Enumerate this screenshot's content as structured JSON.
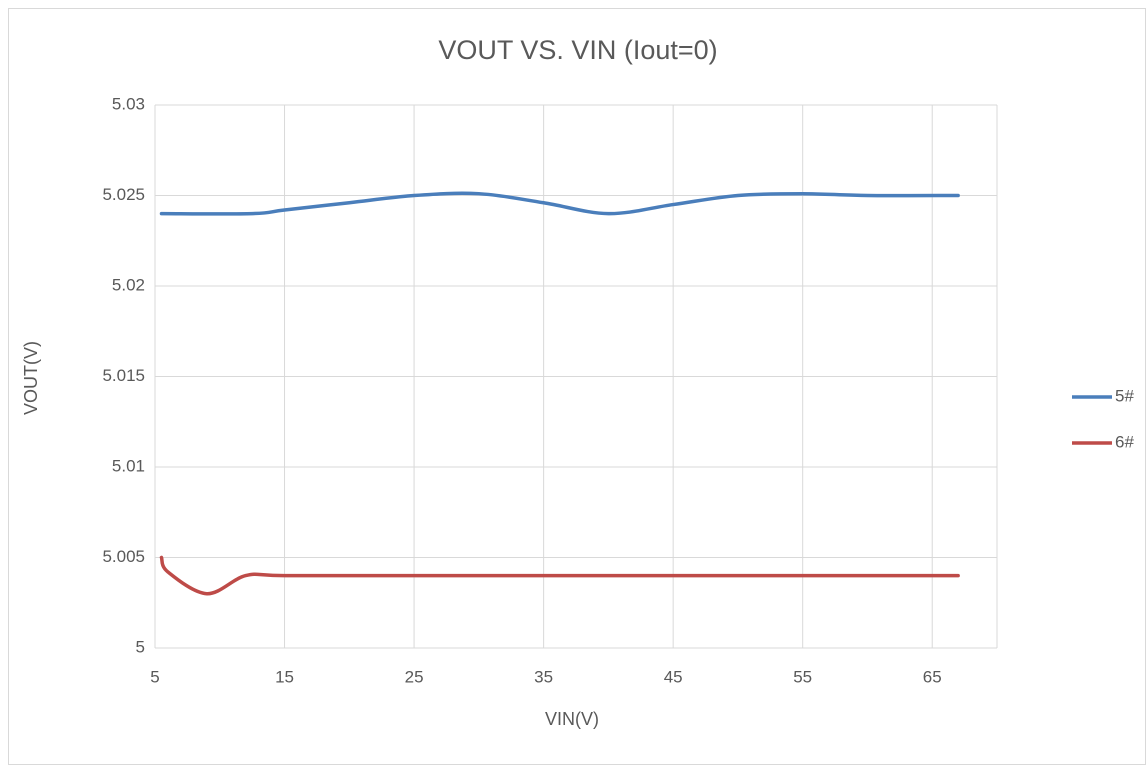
{
  "chart_data": {
    "type": "line",
    "title": "VOUT VS. VIN (Iout=0)",
    "xlabel": "VIN(V)",
    "ylabel": "VOUT(V)",
    "xlim": [
      5,
      70
    ],
    "xticks": [
      5,
      15,
      25,
      35,
      45,
      55,
      65
    ],
    "ylim": [
      5,
      5.03
    ],
    "yticks": [
      5,
      5.005,
      5.01,
      5.015,
      5.02,
      5.025,
      5.03
    ],
    "grid": true,
    "legend": "right",
    "series": [
      {
        "name": "5#",
        "color": "#4a7ebb",
        "x": [
          5.5,
          12.5,
          15,
          20,
          25,
          30,
          35,
          40,
          45,
          50,
          55,
          60,
          67
        ],
        "values": [
          5.024,
          5.024,
          5.0242,
          5.0246,
          5.025,
          5.0251,
          5.0246,
          5.024,
          5.0245,
          5.025,
          5.0251,
          5.025,
          5.025
        ]
      },
      {
        "name": "6#",
        "color": "#be4b48",
        "x": [
          5.5,
          6,
          9,
          12,
          15,
          25,
          35,
          45,
          55,
          67
        ],
        "values": [
          5.005,
          5.0042,
          5.003,
          5.004,
          5.004,
          5.004,
          5.004,
          5.004,
          5.004,
          5.004
        ]
      }
    ]
  }
}
